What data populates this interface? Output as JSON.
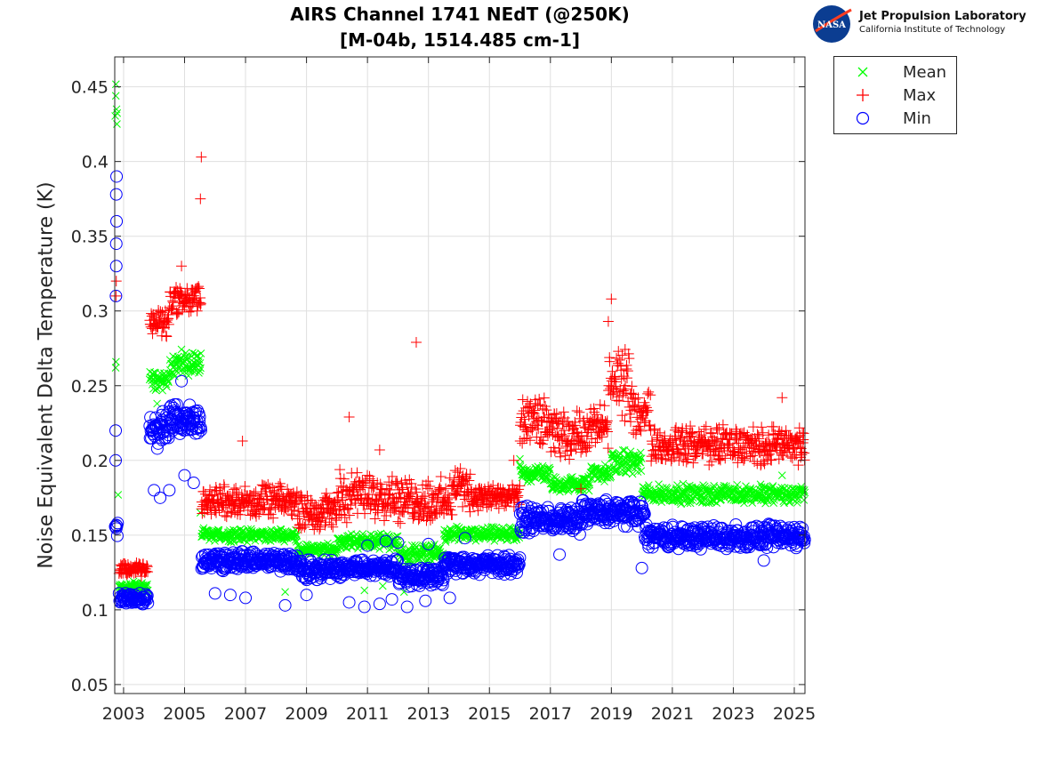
{
  "chart_data": {
    "type": "scatter",
    "title": "AIRS Channel 1741 NEdT (@250K)",
    "subtitle": "[M-04b, 1514.485 cm-1]",
    "xlabel": "",
    "ylabel": "Noise Equivalent Delta Temperature (K)",
    "xlim": [
      2002.71,
      2025.35
    ],
    "ylim": [
      0.044,
      0.47
    ],
    "xticks": [
      "2003",
      "2005",
      "2007",
      "2009",
      "2011",
      "2013",
      "2015",
      "2017",
      "2019",
      "2021",
      "2023",
      "2025"
    ],
    "yticks": [
      "0.05",
      "0.1",
      "0.15",
      "0.2",
      "0.25",
      "0.3",
      "0.35",
      "0.4",
      "0.45"
    ],
    "grid": true,
    "legend_position": "outside-top-right",
    "series": [
      {
        "name": "Mean",
        "marker": "x",
        "color": "#00ff00",
        "bands": [
          [
            2002.72,
            2002.8,
            0.4,
            0.465
          ],
          [
            2002.85,
            2003.8,
            0.111,
            0.12
          ],
          [
            2003.85,
            2004.5,
            0.245,
            0.262
          ],
          [
            2004.5,
            2005.55,
            0.255,
            0.275
          ],
          [
            2005.55,
            2008.7,
            0.145,
            0.155
          ],
          [
            2008.7,
            2010.0,
            0.135,
            0.145
          ],
          [
            2010.0,
            2012.0,
            0.14,
            0.152
          ],
          [
            2012.0,
            2013.5,
            0.13,
            0.145
          ],
          [
            2013.5,
            2016.0,
            0.145,
            0.156
          ],
          [
            2016.0,
            2017.0,
            0.185,
            0.198
          ],
          [
            2017.0,
            2018.3,
            0.178,
            0.19
          ],
          [
            2018.3,
            2019.0,
            0.185,
            0.198
          ],
          [
            2019.0,
            2020.0,
            0.19,
            0.208
          ],
          [
            2020.0,
            2025.35,
            0.17,
            0.185
          ]
        ],
        "points": [
          [
            2002.74,
            0.262
          ],
          [
            2002.75,
            0.266
          ],
          [
            2002.82,
            0.177
          ],
          [
            2005.52,
            0.165
          ],
          [
            2004.1,
            0.238
          ],
          [
            2008.3,
            0.112
          ],
          [
            2010.9,
            0.113
          ],
          [
            2011.5,
            0.116
          ],
          [
            2012.2,
            0.112
          ],
          [
            2016.0,
            0.201
          ],
          [
            2018.0,
            0.18
          ],
          [
            2024.6,
            0.19
          ]
        ]
      },
      {
        "name": "Max",
        "marker": "+",
        "color": "#ff0000",
        "bands": [
          [
            2002.85,
            2003.8,
            0.122,
            0.132
          ],
          [
            2003.85,
            2004.5,
            0.28,
            0.305
          ],
          [
            2004.5,
            2005.55,
            0.295,
            0.32
          ],
          [
            2005.55,
            2008.7,
            0.16,
            0.185
          ],
          [
            2008.7,
            2010.0,
            0.152,
            0.18
          ],
          [
            2010.0,
            2012.0,
            0.158,
            0.195
          ],
          [
            2012.0,
            2013.8,
            0.155,
            0.19
          ],
          [
            2013.8,
            2014.4,
            0.165,
            0.2
          ],
          [
            2014.4,
            2016.0,
            0.165,
            0.185
          ],
          [
            2016.0,
            2017.0,
            0.205,
            0.245
          ],
          [
            2017.0,
            2018.2,
            0.2,
            0.235
          ],
          [
            2018.2,
            2018.9,
            0.205,
            0.24
          ],
          [
            2018.9,
            2019.6,
            0.225,
            0.28
          ],
          [
            2019.6,
            2020.3,
            0.215,
            0.25
          ],
          [
            2020.3,
            2025.35,
            0.195,
            0.225
          ]
        ],
        "points": [
          [
            2002.75,
            0.31
          ],
          [
            2002.76,
            0.32
          ],
          [
            2004.9,
            0.33
          ],
          [
            2005.55,
            0.403
          ],
          [
            2005.52,
            0.375
          ],
          [
            2006.9,
            0.213
          ],
          [
            2010.4,
            0.229
          ],
          [
            2011.4,
            0.207
          ],
          [
            2012.6,
            0.279
          ],
          [
            2019.0,
            0.308
          ],
          [
            2018.9,
            0.293
          ],
          [
            2018.0,
            0.181
          ],
          [
            2015.8,
            0.2
          ],
          [
            2024.6,
            0.242
          ]
        ]
      },
      {
        "name": "Min",
        "marker": "o",
        "color": "#0000ff",
        "bands": [
          [
            2002.72,
            2002.82,
            0.145,
            0.165
          ],
          [
            2002.85,
            2003.8,
            0.103,
            0.112
          ],
          [
            2003.85,
            2004.5,
            0.205,
            0.235
          ],
          [
            2004.5,
            2005.55,
            0.215,
            0.24
          ],
          [
            2005.55,
            2008.7,
            0.125,
            0.14
          ],
          [
            2008.7,
            2010.2,
            0.118,
            0.135
          ],
          [
            2010.2,
            2012.0,
            0.122,
            0.135
          ],
          [
            2012.0,
            2013.5,
            0.115,
            0.13
          ],
          [
            2013.5,
            2016.0,
            0.123,
            0.138
          ],
          [
            2016.0,
            2018.0,
            0.15,
            0.17
          ],
          [
            2018.0,
            2020.1,
            0.155,
            0.175
          ],
          [
            2020.1,
            2025.35,
            0.14,
            0.158
          ]
        ],
        "points": [
          [
            2002.74,
            0.2
          ],
          [
            2002.74,
            0.22
          ],
          [
            2002.75,
            0.31
          ],
          [
            2002.76,
            0.33
          ],
          [
            2002.76,
            0.345
          ],
          [
            2002.77,
            0.36
          ],
          [
            2002.77,
            0.39
          ],
          [
            2002.76,
            0.378
          ],
          [
            2004.9,
            0.253
          ],
          [
            2004.0,
            0.18
          ],
          [
            2004.2,
            0.175
          ],
          [
            2004.5,
            0.18
          ],
          [
            2005.0,
            0.19
          ],
          [
            2005.3,
            0.185
          ],
          [
            2006.0,
            0.111
          ],
          [
            2006.5,
            0.11
          ],
          [
            2007.0,
            0.108
          ],
          [
            2008.3,
            0.103
          ],
          [
            2009.0,
            0.11
          ],
          [
            2010.4,
            0.105
          ],
          [
            2010.9,
            0.102
          ],
          [
            2011.4,
            0.104
          ],
          [
            2011.8,
            0.107
          ],
          [
            2012.3,
            0.102
          ],
          [
            2012.9,
            0.106
          ],
          [
            2013.7,
            0.108
          ],
          [
            2011.0,
            0.143
          ],
          [
            2011.6,
            0.146
          ],
          [
            2012.0,
            0.145
          ],
          [
            2013.0,
            0.144
          ],
          [
            2014.2,
            0.148
          ],
          [
            2020.0,
            0.128
          ],
          [
            2017.3,
            0.137
          ],
          [
            2024.0,
            0.133
          ]
        ]
      }
    ]
  },
  "logo": {
    "name": "Jet Propulsion Laboratory",
    "subtitle": "California Institute of Technology",
    "badge": "NASA"
  }
}
